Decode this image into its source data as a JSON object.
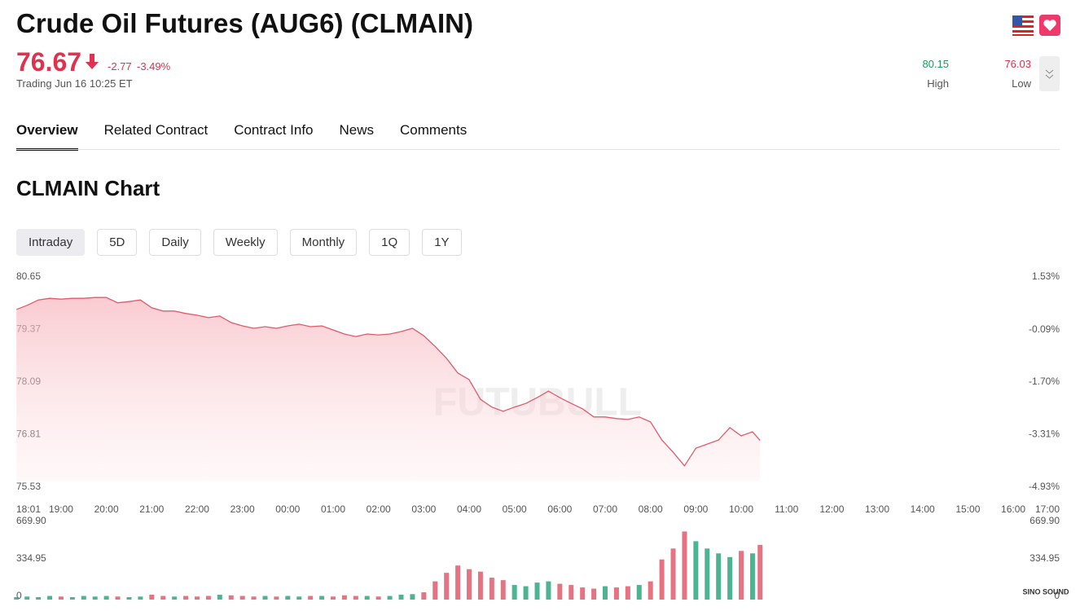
{
  "header": {
    "title": "Crude Oil Futures (AUG6) (CLMAIN)",
    "price": "76.67",
    "change": "-2.77",
    "change_pct": "-3.49%",
    "status": "Trading Jun 16 10:25 ET",
    "high": "80.15",
    "high_label": "High",
    "low": "76.03",
    "low_label": "Low"
  },
  "tabs": [
    "Overview",
    "Related Contract",
    "Contract Info",
    "News",
    "Comments"
  ],
  "chart_title": "CLMAIN Chart",
  "ranges": [
    "Intraday",
    "5D",
    "Daily",
    "Weekly",
    "Monthly",
    "1Q",
    "1Y"
  ],
  "watermark": "FUTUBULL",
  "logo": "SINO SOUND",
  "chart_data": [
    {
      "type": "line",
      "color": "#e05a6c",
      "x": [
        "18:01",
        "18:15",
        "18:30",
        "18:45",
        "19:00",
        "19:15",
        "19:30",
        "19:45",
        "20:00",
        "20:15",
        "20:30",
        "20:45",
        "21:00",
        "21:15",
        "21:30",
        "21:45",
        "22:00",
        "22:15",
        "22:30",
        "22:45",
        "23:00",
        "23:15",
        "23:30",
        "23:45",
        "00:00",
        "00:15",
        "00:30",
        "00:45",
        "01:00",
        "01:15",
        "01:30",
        "01:45",
        "02:00",
        "02:15",
        "02:30",
        "02:45",
        "03:00",
        "03:15",
        "03:30",
        "03:45",
        "04:00",
        "04:15",
        "04:30",
        "04:45",
        "05:00",
        "05:15",
        "05:30",
        "05:45",
        "06:00",
        "06:15",
        "06:30",
        "06:45",
        "07:00",
        "07:15",
        "07:30",
        "07:45",
        "08:00",
        "08:15",
        "08:30",
        "08:45",
        "09:00",
        "09:15",
        "09:30",
        "09:45",
        "10:00",
        "10:15",
        "10:25"
      ],
      "values": [
        79.86,
        79.96,
        80.09,
        80.13,
        80.11,
        80.13,
        80.13,
        80.15,
        80.15,
        80.02,
        80.05,
        80.09,
        79.9,
        79.82,
        79.82,
        79.76,
        79.72,
        79.66,
        79.7,
        79.54,
        79.46,
        79.4,
        79.44,
        79.4,
        79.46,
        79.5,
        79.44,
        79.46,
        79.36,
        79.26,
        79.2,
        79.26,
        79.24,
        79.26,
        79.32,
        79.4,
        79.22,
        78.96,
        78.67,
        78.31,
        78.15,
        77.67,
        77.48,
        77.38,
        77.48,
        77.57,
        77.71,
        77.87,
        77.71,
        77.57,
        77.44,
        77.24,
        77.24,
        77.2,
        77.18,
        77.24,
        77.12,
        76.68,
        76.38,
        76.05,
        76.48,
        76.58,
        76.68,
        76.98,
        76.78,
        76.88,
        76.67
      ],
      "xlim": [
        "18:01",
        "17:00"
      ],
      "xticks": [
        "18:01",
        "19:00",
        "20:00",
        "21:00",
        "22:00",
        "23:00",
        "00:00",
        "01:00",
        "02:00",
        "03:00",
        "04:00",
        "05:00",
        "06:00",
        "07:00",
        "08:00",
        "09:00",
        "10:00",
        "11:00",
        "12:00",
        "13:00",
        "14:00",
        "15:00",
        "16:00",
        "17:00"
      ],
      "ylim": [
        75.53,
        80.65
      ],
      "yticks": [
        80.65,
        79.37,
        78.09,
        76.81,
        75.53
      ],
      "y2lim": [
        -4.93,
        1.53
      ],
      "y2ticks": [
        {
          "value": 1.53,
          "label": "1.53%"
        },
        {
          "value": -0.09,
          "label": "-0.09%"
        },
        {
          "value": -1.7,
          "label": "-1.70%"
        },
        {
          "value": -3.31,
          "label": "-3.31%"
        },
        {
          "value": -4.93,
          "label": "-4.93%"
        }
      ]
    },
    {
      "type": "bar",
      "up_color": "#2ea77f",
      "down_color": "#e05a6c",
      "x": [
        "18:01",
        "18:15",
        "18:30",
        "18:45",
        "19:00",
        "19:15",
        "19:30",
        "19:45",
        "20:00",
        "20:15",
        "20:30",
        "20:45",
        "21:00",
        "21:15",
        "21:30",
        "21:45",
        "22:00",
        "22:15",
        "22:30",
        "22:45",
        "23:00",
        "23:15",
        "23:30",
        "23:45",
        "00:00",
        "00:15",
        "00:30",
        "00:45",
        "01:00",
        "01:15",
        "01:30",
        "01:45",
        "02:00",
        "02:15",
        "02:30",
        "02:45",
        "03:00",
        "03:15",
        "03:30",
        "03:45",
        "04:00",
        "04:15",
        "04:30",
        "04:45",
        "05:00",
        "05:15",
        "05:30",
        "05:45",
        "06:00",
        "06:15",
        "06:30",
        "06:45",
        "07:00",
        "07:15",
        "07:30",
        "07:45",
        "08:00",
        "08:15",
        "08:30",
        "08:45",
        "09:00",
        "09:15",
        "09:30",
        "09:45",
        "10:00",
        "10:15",
        "10:25"
      ],
      "values": [
        20,
        25,
        20,
        30,
        25,
        20,
        30,
        25,
        30,
        25,
        20,
        25,
        40,
        30,
        25,
        30,
        25,
        30,
        40,
        35,
        30,
        25,
        30,
        25,
        30,
        25,
        30,
        30,
        25,
        35,
        30,
        30,
        25,
        30,
        40,
        45,
        60,
        150,
        220,
        280,
        250,
        230,
        180,
        160,
        120,
        110,
        140,
        150,
        130,
        120,
        100,
        90,
        110,
        100,
        110,
        120,
        150,
        330,
        420,
        560,
        480,
        420,
        380,
        350,
        400,
        380,
        450
      ],
      "ylim": [
        0,
        669.9
      ],
      "yticks": [
        0,
        334.95,
        {
          "value": 669.9,
          "label": "669.90"
        }
      ]
    }
  ]
}
